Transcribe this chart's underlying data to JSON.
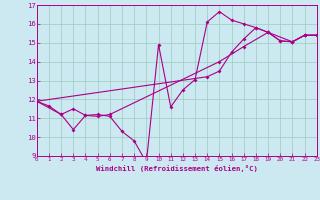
{
  "xlabel": "Windchill (Refroidissement éolien,°C)",
  "xlim": [
    0,
    23
  ],
  "ylim": [
    9,
    17
  ],
  "xticks": [
    0,
    1,
    2,
    3,
    4,
    5,
    6,
    7,
    8,
    9,
    10,
    11,
    12,
    13,
    14,
    15,
    16,
    17,
    18,
    19,
    20,
    21,
    22,
    23
  ],
  "yticks": [
    9,
    10,
    11,
    12,
    13,
    14,
    15,
    16,
    17
  ],
  "bg_color": "#cce8f0",
  "line_color": "#aa0088",
  "grid_color": "#99ccbb",
  "line1_x": [
    0,
    1,
    2,
    3,
    4,
    5,
    6,
    7,
    8,
    9,
    10,
    11,
    12,
    13,
    14,
    15,
    16,
    17,
    18,
    19,
    20,
    21,
    22,
    23
  ],
  "line1_y": [
    11.9,
    11.65,
    11.2,
    10.4,
    11.15,
    11.2,
    11.1,
    10.3,
    9.8,
    8.65,
    14.9,
    11.6,
    12.5,
    13.05,
    16.1,
    16.65,
    16.2,
    16.0,
    15.8,
    15.55,
    15.1,
    15.05,
    15.4,
    15.4
  ],
  "line2_x": [
    0,
    2,
    3,
    4,
    5,
    6,
    15,
    17,
    19,
    21,
    22,
    23
  ],
  "line2_y": [
    11.9,
    11.2,
    11.5,
    11.15,
    11.1,
    11.2,
    14.0,
    14.8,
    15.55,
    15.05,
    15.4,
    15.4
  ],
  "line3_x": [
    0,
    14,
    15,
    16,
    17,
    18,
    19,
    20,
    21,
    22,
    23
  ],
  "line3_y": [
    11.9,
    13.2,
    13.5,
    14.5,
    15.2,
    15.8,
    15.55,
    15.1,
    15.05,
    15.4,
    15.4
  ]
}
